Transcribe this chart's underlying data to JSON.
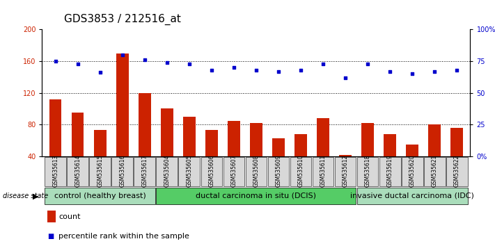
{
  "title": "GDS3853 / 212516_at",
  "samples": [
    "GSM535613",
    "GSM535614",
    "GSM535615",
    "GSM535616",
    "GSM535617",
    "GSM535604",
    "GSM535605",
    "GSM535606",
    "GSM535607",
    "GSM535608",
    "GSM535609",
    "GSM535610",
    "GSM535611",
    "GSM535612",
    "GSM535618",
    "GSM535619",
    "GSM535620",
    "GSM535621",
    "GSM535622"
  ],
  "counts": [
    112,
    95,
    73,
    170,
    120,
    100,
    90,
    73,
    85,
    82,
    63,
    68,
    88,
    42,
    82,
    68,
    55,
    80,
    76
  ],
  "percentiles": [
    75,
    73,
    66,
    80,
    76,
    74,
    73,
    68,
    70,
    68,
    67,
    68,
    73,
    62,
    73,
    67,
    65,
    67,
    68
  ],
  "groups": [
    {
      "label": "control (healthy breast)",
      "start": 0,
      "end": 5,
      "color": "#aae8aa"
    },
    {
      "label": "ductal carcinoma in situ (DCIS)",
      "start": 5,
      "end": 14,
      "color": "#55cc55"
    },
    {
      "label": "invasive ductal carcinoma (IDC)",
      "start": 14,
      "end": 19,
      "color": "#aae8aa"
    }
  ],
  "ylim_left": [
    40,
    200
  ],
  "ylim_right": [
    0,
    100
  ],
  "yticks_left": [
    40,
    80,
    120,
    160,
    200
  ],
  "yticks_right": [
    0,
    25,
    50,
    75,
    100
  ],
  "bar_color": "#CC2200",
  "scatter_color": "#0000CC",
  "bar_width": 0.55,
  "title_fontsize": 11,
  "tick_fontsize": 7,
  "group_label_fontsize": 8,
  "legend_fontsize": 8
}
